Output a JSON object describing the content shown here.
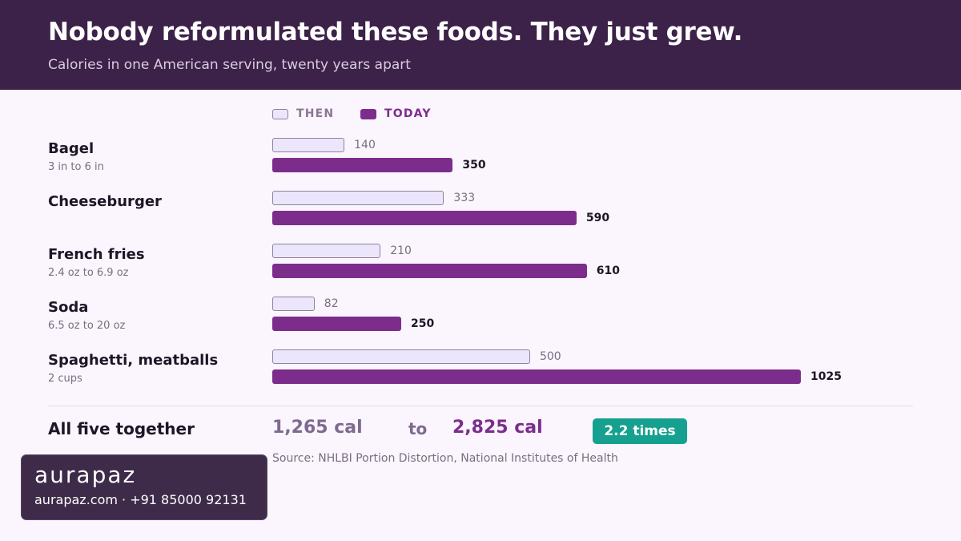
{
  "header": {
    "title": "Nobody reformulated these foods. They just grew.",
    "subtitle": "Calories in one American serving, twenty years apart"
  },
  "chart_data": {
    "type": "bar",
    "orientation": "horizontal",
    "title": "Nobody reformulated these foods. They just grew.",
    "subtitle": "Calories in one American serving, twenty years apart",
    "legend": {
      "placement": "top-left",
      "entries": [
        "THEN",
        "TODAY"
      ]
    },
    "categories": [
      {
        "name": "Bagel",
        "sub": "3 in to 6 in"
      },
      {
        "name": "Cheeseburger",
        "sub": ""
      },
      {
        "name": "French fries",
        "sub": "2.4 oz to 6.9 oz"
      },
      {
        "name": "Soda",
        "sub": "6.5 oz to 20 oz"
      },
      {
        "name": "Spaghetti, meatballs",
        "sub": "2 cups"
      }
    ],
    "series": [
      {
        "name": "THEN",
        "values": [
          140,
          333,
          210,
          82,
          500
        ],
        "color": "#ebe6fb"
      },
      {
        "name": "TODAY",
        "values": [
          350,
          590,
          610,
          250,
          1025
        ],
        "color": "#7c2d8c"
      }
    ],
    "xlim": [
      0,
      1025
    ],
    "grid": false
  },
  "totals": {
    "label": "All five together",
    "then": "1,265 cal",
    "connector": "to",
    "today": "2,825 cal",
    "badge": "2.2 times",
    "badge_color": "#16a08f"
  },
  "source": "Source: NHLBI Portion Distortion, National Institutes of Health",
  "brand": {
    "logo": "aurapaz",
    "contact": "aurapaz.com · +91 85000 92131"
  }
}
